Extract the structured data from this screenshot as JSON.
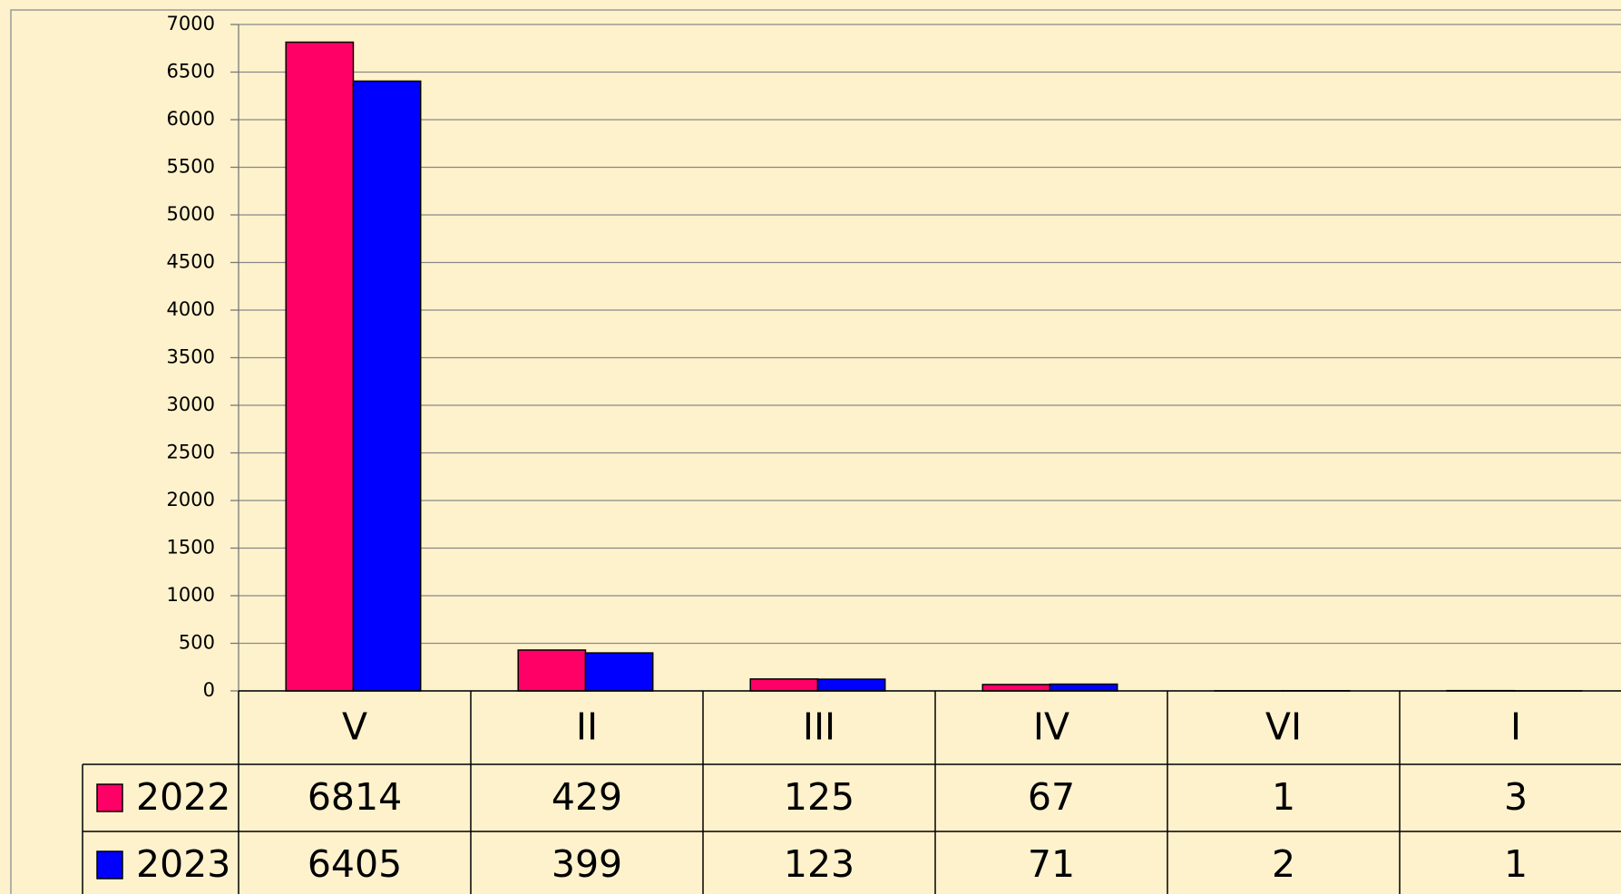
{
  "chart_data": {
    "type": "bar",
    "categories": [
      "V",
      "II",
      "III",
      "IV",
      "VI",
      "I"
    ],
    "series": [
      {
        "name": "2022",
        "color": "#ff0066",
        "values": [
          6814,
          429,
          125,
          67,
          1,
          3
        ]
      },
      {
        "name": "2023",
        "color": "#0000ff",
        "values": [
          6405,
          399,
          123,
          71,
          2,
          1
        ]
      }
    ],
    "ylim": [
      0,
      7000
    ],
    "yticks": [
      0,
      500,
      1000,
      1500,
      2000,
      2500,
      3000,
      3500,
      4000,
      4500,
      5000,
      5500,
      6000,
      6500,
      7000
    ],
    "grid": true,
    "data_table": true
  }
}
